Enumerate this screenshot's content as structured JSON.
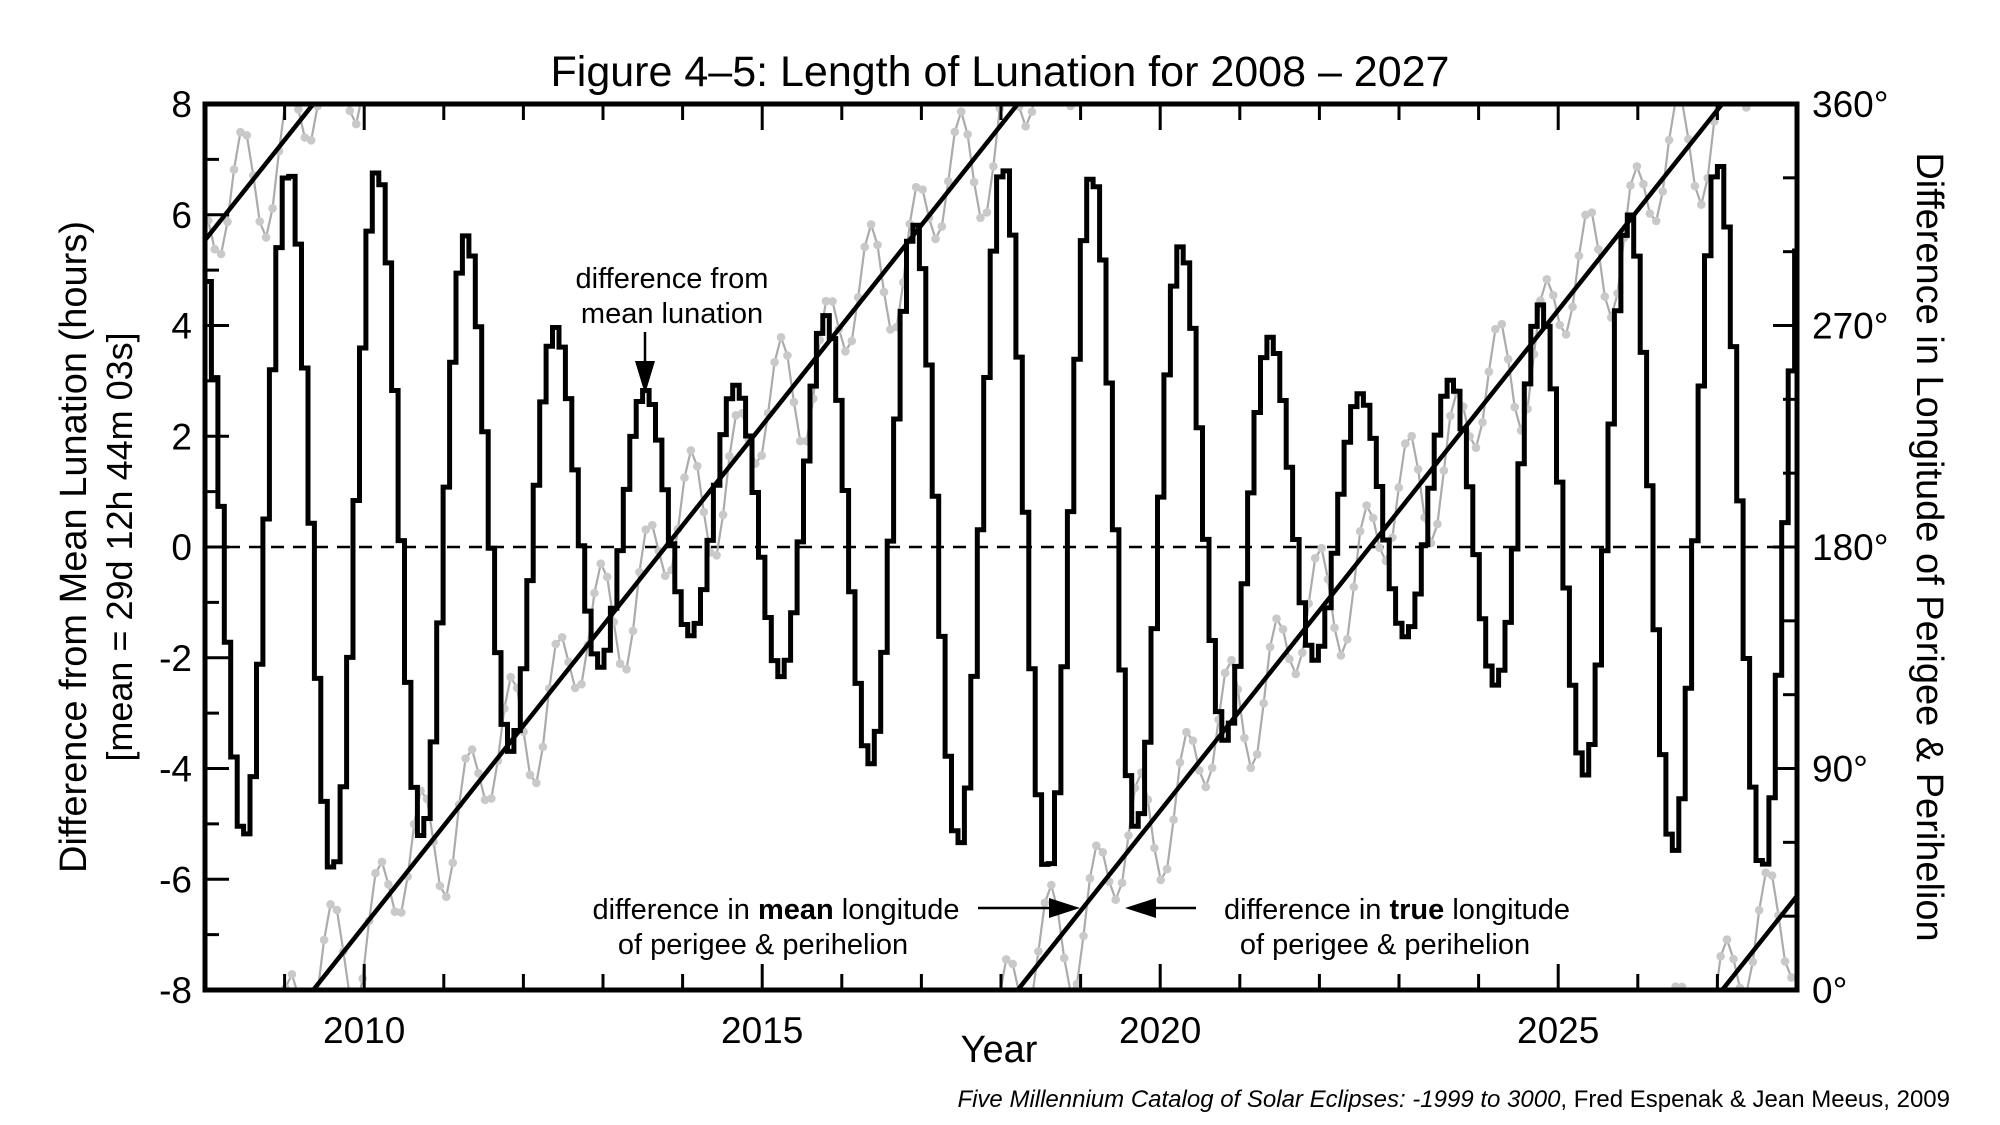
{
  "title": "Figure 4–5:  Length of Lunation for 2008 – 2027",
  "footer": {
    "italic": "Five Millennium Catalog of Solar Eclipses: -1999 to 3000",
    "regular": ", Fred Espenak & Jean Meeus, 2009"
  },
  "axes": {
    "x": {
      "label": "Year",
      "range": [
        2008,
        2028
      ],
      "major_tick_labels": [
        "2010",
        "2015",
        "2020",
        "2025"
      ],
      "major_tick_years": [
        2010,
        2015,
        2020,
        2025
      ],
      "minor_tick_interval_years": 1
    },
    "y_left": {
      "label_line1": "Difference from Mean Lunation (hours)",
      "label_line2": "[mean = 29d 12h 44m 03s]",
      "range_hours": [
        -8,
        8
      ],
      "major_tick_labels": [
        "8",
        "6",
        "4",
        "2",
        "0",
        "-2",
        "-4",
        "-6",
        "-8"
      ],
      "major_tick_values": [
        8,
        6,
        4,
        2,
        0,
        -2,
        -4,
        -6,
        -8
      ],
      "minor_tick_interval_hours": 1
    },
    "y_right": {
      "label": "Difference in Longitude of Perigee & Perihelion",
      "range_deg": [
        0,
        360
      ],
      "major_tick_labels": [
        "360°",
        "270°",
        "180°",
        "90°",
        "0°"
      ],
      "major_tick_values_deg": [
        360,
        270,
        180,
        90,
        0
      ],
      "minor_tick_interval_deg": 30
    }
  },
  "annotations": {
    "lunation": {
      "line1": "difference from",
      "line2": "mean lunation",
      "arrow": "down-arrow to the small +2.8 h peak near 2013.5"
    },
    "mean_longitude": {
      "pre": "difference in ",
      "bold": "mean",
      "post": " longitude",
      "line2": "of perigee & perihelion",
      "arrow": "right-arrow to the straight diagonal line near 2019.0"
    },
    "true_longitude": {
      "pre": "difference in ",
      "bold": "true",
      "post": " longitude",
      "line2": "of perigee & perihelion",
      "arrow": "left-arrow to the gray dotted curve near 2019.5"
    }
  },
  "colors": {
    "background": "#ffffff",
    "frame": "#000000",
    "step_series": "#000000",
    "mean_longitude_line": "#000000",
    "true_longitude_line": "#ababab",
    "true_longitude_marker": "#c9c9c9",
    "zero_line": "#000000"
  },
  "chart_data": {
    "type": "line",
    "title": "Figure 4–5:  Length of Lunation for 2008 – 2027",
    "xlabel": "Year",
    "ylabel_left": "Difference from Mean Lunation (hours) [mean = 29d 12h 44m 03s]",
    "ylabel_right": "Difference in Longitude of Perigee & Perihelion",
    "x_range": [
      2008,
      2028
    ],
    "y_left_range_hours": [
      -8,
      8
    ],
    "y_right_range_deg": [
      0,
      360
    ],
    "grid": "none (single dashed reference line at 0 h / 180°)",
    "legend": "in-plot text annotations with arrows",
    "series": [
      {
        "name": "difference from mean lunation",
        "style": "step",
        "axis": "left (hours)",
        "color": "#000000",
        "model": {
          "description": "one horizontal step per lunation; value = offset + (E(t)-offset)*cos(2*pi*(t-carrier_peak)/carrier_period); E(t) = env_mean + env_amp*cos(2*pi*(t-env_peak)/env_period)",
          "lunation_length_days": 29.5306,
          "step_interval_yr": 0.0808504,
          "carrier_period_yr": 1.1225,
          "carrier_peak_year": 2009.05,
          "envelope_mean_hours": 4.85,
          "envelope_amplitude_hours": 2.15,
          "envelope_period_yr": 8.85,
          "envelope_peak_year": 2009.6,
          "asymmetry_offset_hours": 0.55
        },
        "peak_times_and_values_hours": [
          [
            2009.05,
            6.8
          ],
          [
            2010.17,
            6.8
          ],
          [
            2011.3,
            5.6
          ],
          [
            2012.42,
            4.0
          ],
          [
            2013.54,
            2.8
          ],
          [
            2014.67,
            2.9
          ],
          [
            2015.79,
            4.2
          ],
          [
            2016.92,
            5.9
          ],
          [
            2018.04,
            6.9
          ],
          [
            2019.16,
            6.7
          ],
          [
            2020.28,
            5.4
          ],
          [
            2021.41,
            3.8
          ],
          [
            2022.53,
            2.8
          ],
          [
            2023.65,
            3.0
          ],
          [
            2024.78,
            4.4
          ],
          [
            2025.9,
            6.0
          ],
          [
            2027.02,
            7.0
          ]
        ],
        "trough_depth_rule_hours": "trough = 1.1 - peak envelope (about -5.8 at maximum envelope)"
      },
      {
        "name": "difference in mean longitude of perigee & perihelion",
        "style": "straight line, wrapping 0°–360°",
        "axis": "right (degrees)",
        "color": "#000000",
        "model": {
          "rate_deg_per_year": 40.678,
          "period_yr": 8.85,
          "ascending_zero_crossing_years": [
            2009.36,
            2018.21,
            2027.06
          ],
          "value_at_2008_deg": 304.7,
          "value_at_2028_deg": 38.2
        }
      },
      {
        "name": "difference in true longitude of perigee & perihelion",
        "style": "jagged polyline with round markers, wrapping 0°–360°",
        "axis": "right (degrees)",
        "color": "#ababab",
        "marker_color": "#c9c9c9",
        "model": {
          "description": "mean-longitude line plus two oscillations, sampled once per lunation",
          "sampling_interval_days": 29.5306,
          "oscillation1": {
            "amplitude_deg": 22,
            "period_yr": 0.5636,
            "phase_zero_year": 2008.34
          },
          "oscillation2": {
            "amplitude_deg": 9,
            "period_yr": 0.0871,
            "phase_zero_year": 2008.0
          }
        }
      }
    ]
  }
}
